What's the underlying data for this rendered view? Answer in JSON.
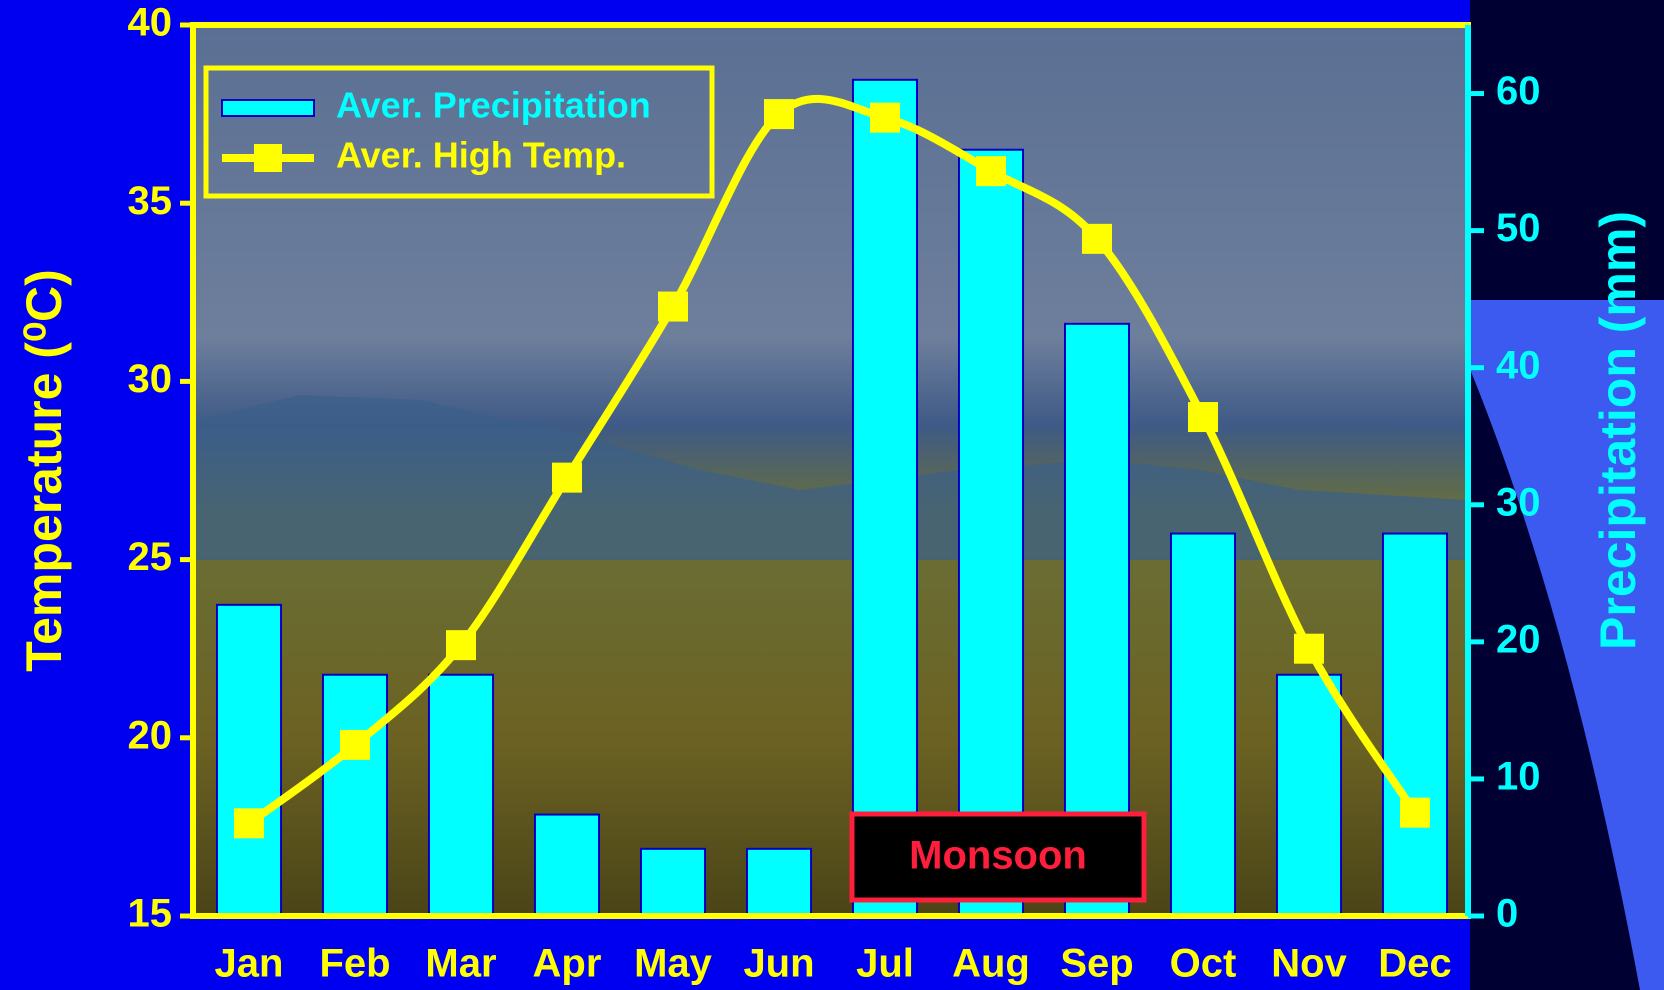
{
  "chart_data": {
    "type": "combo",
    "categories": [
      "Jan",
      "Feb",
      "Mar",
      "Apr",
      "May",
      "Jun",
      "Jul",
      "Aug",
      "Sep",
      "Oct",
      "Nov",
      "Dec"
    ],
    "series": [
      {
        "name": "Aver. Precipitation",
        "type": "bar",
        "axis": "y2",
        "color": "#00ffff",
        "values": [
          22.7,
          17.6,
          17.6,
          7.4,
          4.9,
          4.9,
          61.0,
          55.9,
          43.2,
          27.9,
          17.6,
          27.9
        ]
      },
      {
        "name": "Aver. High Temp.",
        "type": "line",
        "axis": "y",
        "color": "#ffff00",
        "values": [
          17.6,
          19.8,
          22.6,
          27.3,
          32.1,
          37.5,
          37.4,
          35.9,
          34.0,
          29.0,
          22.5,
          17.9
        ]
      }
    ],
    "ylabel": "Temperature (⁰C)",
    "y2label": "Precipitation (mm)",
    "ylim": [
      15,
      40
    ],
    "yticks": [
      15,
      20,
      25,
      30,
      35,
      40
    ],
    "y2lim": [
      0,
      65
    ],
    "y2ticks": [
      0,
      10,
      20,
      30,
      40,
      50,
      60
    ],
    "annotation": "Monsoon",
    "legend": "top-left"
  }
}
